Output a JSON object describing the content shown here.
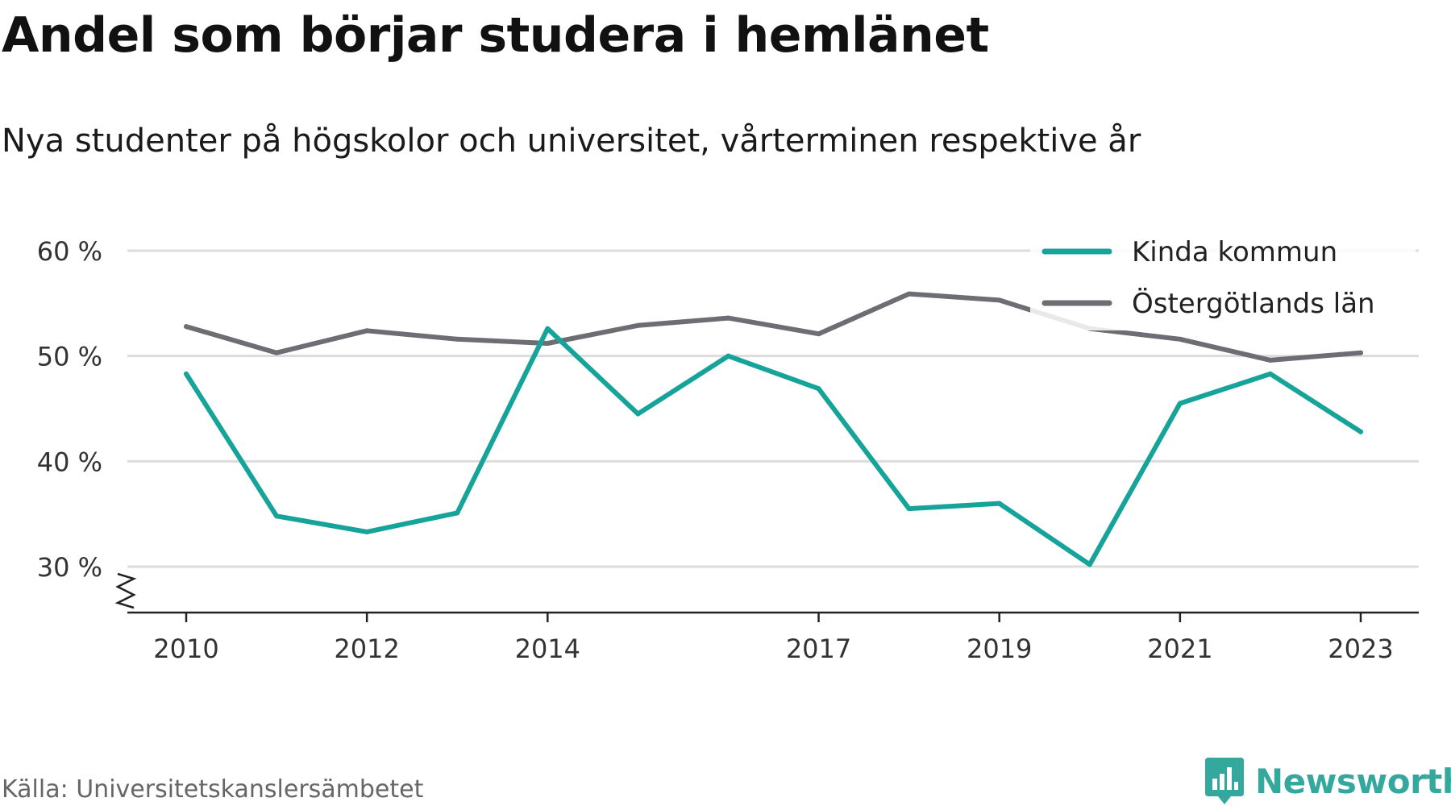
{
  "header": {
    "title": "Andel som börjar studera i hemlänet",
    "subtitle": "Nya studenter på högskolor och universitet, vårterminen respektive år"
  },
  "footer": {
    "source": "Källa: Universitetskanslersämbetet",
    "logo_text": "Newsworthy",
    "logo_icon": "newsworthy-bar-chart-icon"
  },
  "colors": {
    "kinda": "#16a399",
    "ostergotland": "#6e6d73",
    "grid": "#dcdcdc",
    "axis": "#222222",
    "brand": "#34a89c"
  },
  "chart_data": {
    "type": "line",
    "title": "Andel som börjar studera i hemlänet",
    "subtitle": "Nya studenter på högskolor och universitet, vårterminen respektive år",
    "x": [
      2010,
      2011,
      2012,
      2013,
      2014,
      2015,
      2016,
      2017,
      2018,
      2019,
      2020,
      2021,
      2022,
      2023
    ],
    "x_ticks": [
      "2010",
      "2012",
      "2014",
      "2017",
      "2019",
      "2021",
      "2023"
    ],
    "y_ticks": [
      {
        "value": 30,
        "label": "30 %"
      },
      {
        "value": 40,
        "label": "40 %"
      },
      {
        "value": 50,
        "label": "50 %"
      },
      {
        "value": 60,
        "label": "60 %"
      }
    ],
    "ylim": [
      30,
      60
    ],
    "y_axis_break": true,
    "grid": true,
    "legend_position": "top-right",
    "series": [
      {
        "name": "Kinda kommun",
        "color": "#16a399",
        "values": [
          48.3,
          34.8,
          33.3,
          35.1,
          52.6,
          44.5,
          50.0,
          46.9,
          35.5,
          36.0,
          30.2,
          45.5,
          48.3,
          42.8
        ]
      },
      {
        "name": "Östergötlands län",
        "color": "#6e6d73",
        "values": [
          52.8,
          50.3,
          52.4,
          51.6,
          51.2,
          52.9,
          53.6,
          52.1,
          55.9,
          55.3,
          52.6,
          51.6,
          49.6,
          50.3
        ]
      }
    ]
  }
}
